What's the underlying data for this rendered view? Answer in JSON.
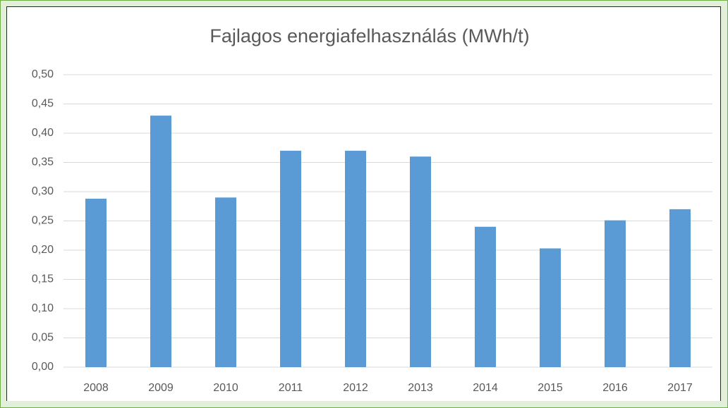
{
  "chart_data": {
    "type": "bar",
    "title": "Fajlagos energiafelhasználás (MWh/t)",
    "categories": [
      "2008",
      "2009",
      "2010",
      "2011",
      "2012",
      "2013",
      "2014",
      "2015",
      "2016",
      "2017"
    ],
    "values": [
      0.288,
      0.43,
      0.29,
      0.37,
      0.37,
      0.36,
      0.24,
      0.203,
      0.251,
      0.27
    ],
    "color": "#5b9bd5",
    "ylim": [
      0,
      0.5
    ],
    "yticks": [
      {
        "value": 0,
        "label": "0,00"
      },
      {
        "value": 0.05,
        "label": "0,05"
      },
      {
        "value": 0.1,
        "label": "0,10"
      },
      {
        "value": 0.15,
        "label": "0,15"
      },
      {
        "value": 0.2,
        "label": "0,20"
      },
      {
        "value": 0.25,
        "label": "0,25"
      },
      {
        "value": 0.3,
        "label": "0,30"
      },
      {
        "value": 0.35,
        "label": "0,35"
      },
      {
        "value": 0.4,
        "label": "0,40"
      },
      {
        "value": 0.45,
        "label": "0,45"
      },
      {
        "value": 0.5,
        "label": "0,50"
      }
    ],
    "grid": true
  }
}
